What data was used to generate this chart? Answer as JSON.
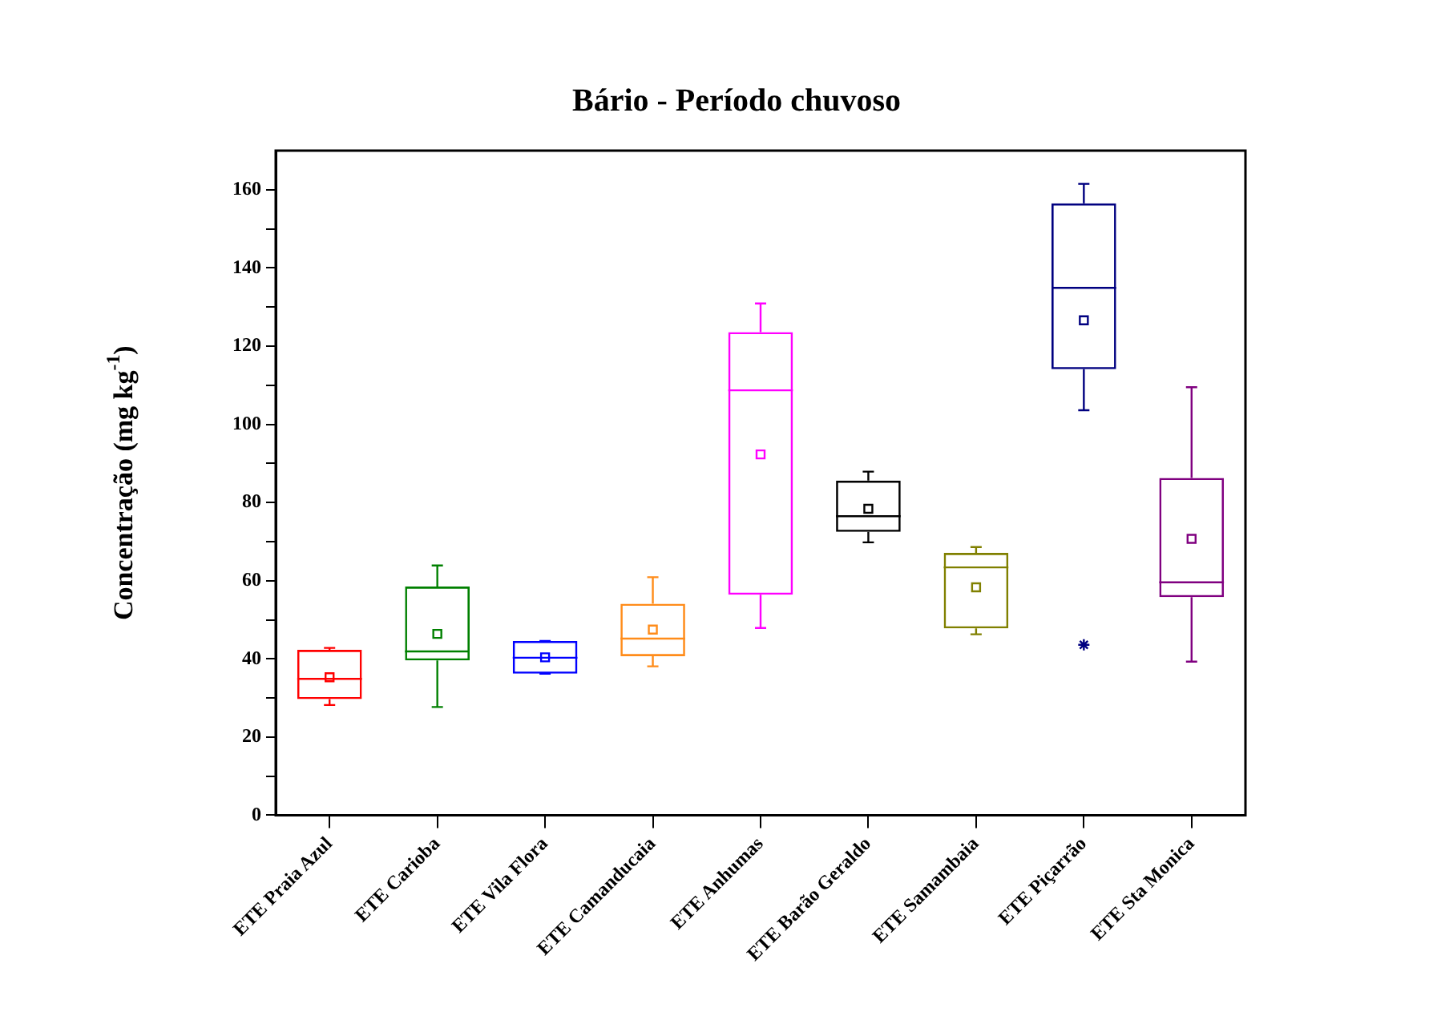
{
  "chart_data": {
    "type": "box",
    "title": "Bário - Período chuvoso",
    "ylabel": "Concentração (mg kg$^{-1}$)",
    "categories": [
      "ETE Praia Azul",
      "ETE Carioba",
      "ETE Vila Flora",
      "ETE Camanducaia",
      "ETE Anhumas",
      "ETE Barão Geraldo",
      "ETE Samambaia",
      "ETE Piçarrão",
      "ETE Sta Monica"
    ],
    "colors": [
      "#ff0000",
      "#008000",
      "#0000ff",
      "#ff8c1a",
      "#ff00ff",
      "#000000",
      "#808000",
      "#000080",
      "#800080"
    ],
    "boxes": [
      {
        "low": 28.2,
        "q1": 29.7,
        "median": 34.9,
        "q3": 42.3,
        "high": 42.8,
        "mean": 35.3
      },
      {
        "low": 27.7,
        "q1": 39.6,
        "median": 41.9,
        "q3": 58.5,
        "high": 63.9,
        "mean": 46.4
      },
      {
        "low": 36.2,
        "q1": 36.2,
        "median": 40.3,
        "q3": 44.6,
        "high": 44.6,
        "mean": 40.4
      },
      {
        "low": 38.1,
        "q1": 40.7,
        "median": 45.2,
        "q3": 54.1,
        "high": 60.9,
        "mean": 47.5
      },
      {
        "low": 47.9,
        "q1": 56.4,
        "median": 108.7,
        "q3": 123.6,
        "high": 130.9,
        "mean": 92.3
      },
      {
        "low": 69.8,
        "q1": 72.5,
        "median": 76.5,
        "q3": 85.6,
        "high": 87.9,
        "mean": 78.4
      },
      {
        "low": 46.3,
        "q1": 47.8,
        "median": 63.4,
        "q3": 67.1,
        "high": 68.6,
        "mean": 58.3
      },
      {
        "low": 103.6,
        "q1": 114.1,
        "median": 134.9,
        "q3": 156.5,
        "high": 161.5,
        "mean": 126.6,
        "outliers": [
          43.6
        ]
      },
      {
        "low": 39.3,
        "q1": 55.8,
        "median": 59.6,
        "q3": 86.3,
        "high": 109.5,
        "mean": 70.7
      }
    ],
    "ylim": [
      0,
      170
    ],
    "yticks": [
      0,
      {
        "value": 10,
        "label": null
      },
      20,
      {
        "value": 30,
        "label": null
      },
      40,
      {
        "value": 50,
        "label": null
      },
      60,
      {
        "value": 70,
        "label": null
      },
      80,
      {
        "value": 90,
        "label": null
      },
      100,
      {
        "value": 110,
        "label": null
      },
      120,
      {
        "value": 130,
        "label": null
      },
      140,
      {
        "value": 150,
        "label": null
      },
      160
    ],
    "grid": false,
    "legend": false
  }
}
